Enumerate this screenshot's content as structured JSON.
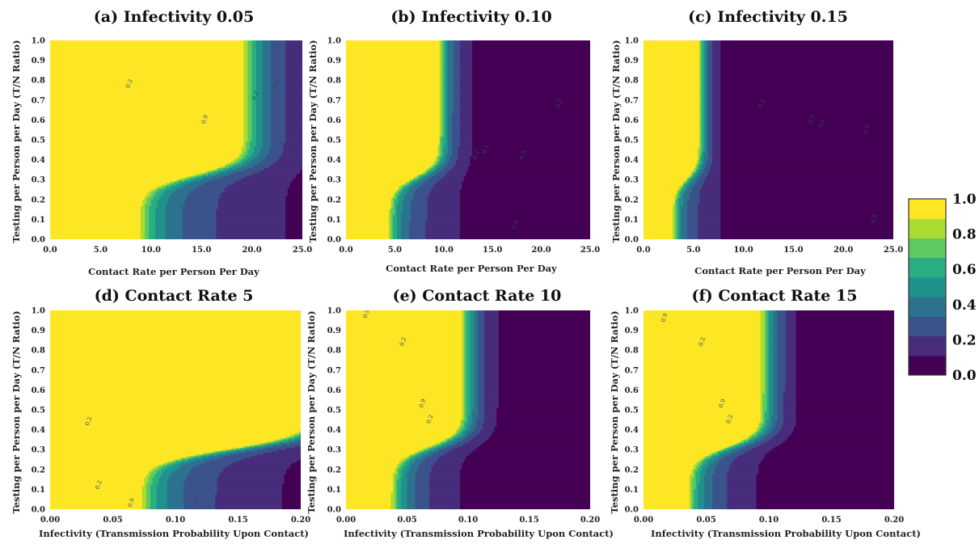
{
  "figure": {
    "colorbar": {
      "ticks": [
        "1.0",
        "0.8",
        "0.6",
        "0.4",
        "0.2",
        "0.0"
      ],
      "colors": [
        "#440154",
        "#472d7b",
        "#3b528b",
        "#2c728e",
        "#21918c",
        "#28ae80",
        "#5ec962",
        "#addc30",
        "#fde725"
      ]
    }
  },
  "chart_data": [
    {
      "type": "contour",
      "title": "(a) Infectivity 0.05",
      "xlabel": "Contact Rate per Person Per Day",
      "ylabel": "Testing per Person per Day (T/N Ratio)",
      "xlim": [
        0,
        25
      ],
      "ylim": [
        0,
        1
      ],
      "xticks": [
        "0.0",
        "5.0",
        "10.0",
        "15.0",
        "20.0",
        "25.0"
      ],
      "yticks": [
        "0.0",
        "0.1",
        "0.2",
        "0.3",
        "0.4",
        "0.5",
        "0.6",
        "0.7",
        "0.8",
        "0.9",
        "1.0"
      ],
      "contour_labels": [
        "0.9",
        "0.9",
        "0.2",
        "0.2"
      ],
      "params": {
        "threshold": 0.32,
        "xlow": 8.5,
        "xhigh": 18.8,
        "spread": 1.4,
        "decay": 9
      }
    },
    {
      "type": "contour",
      "title": "(b) Infectivity 0.10",
      "xlabel": "Contact Rate per Person Per Day",
      "ylabel": "Testing per Person per Day (T/N Ratio)",
      "xlim": [
        0,
        25
      ],
      "ylim": [
        0,
        1
      ],
      "xticks": [
        "0.0",
        "5.0",
        "10.0",
        "15.0",
        "20.0",
        "25.0"
      ],
      "yticks": [
        "0.0",
        "0.1",
        "0.2",
        "0.3",
        "0.4",
        "0.5",
        "0.6",
        "0.7",
        "0.8",
        "0.9",
        "1.0"
      ],
      "contour_labels": [
        "0.9",
        "0.9",
        "0.2",
        "0.2",
        "0.1"
      ],
      "params": {
        "threshold": 0.31,
        "xlow": 4.2,
        "xhigh": 9.3,
        "spread": 0.75,
        "decay": 4.5
      }
    },
    {
      "type": "contour",
      "title": "(c) Infectivity 0.15",
      "xlabel": "Contact Rate per Person Per Day",
      "ylabel": "Testing per Person per Day (T/N Ratio)",
      "xlim": [
        0,
        25
      ],
      "ylim": [
        0,
        1
      ],
      "xticks": [
        "0.0",
        "5.0",
        "10.0",
        "15.0",
        "20.0",
        "25.0"
      ],
      "yticks": [
        "0.0",
        "0.1",
        "0.2",
        "0.3",
        "0.4",
        "0.5",
        "0.6",
        "0.7",
        "0.8",
        "0.9",
        "1.0"
      ],
      "contour_labels": [
        "0.9",
        "0.9",
        "0.2",
        "0.2",
        "0.1"
      ],
      "params": {
        "threshold": 0.3,
        "xlow": 2.8,
        "xhigh": 5.4,
        "spread": 0.5,
        "decay": 3
      }
    },
    {
      "type": "contour",
      "title": "(d) Contact Rate 5",
      "xlabel": "Infectivity (Transmission Probability Upon Contact)",
      "ylabel": "Testing per Person per Day (T/N Ratio)",
      "xlim": [
        0,
        0.2
      ],
      "ylim": [
        0,
        1
      ],
      "xticks": [
        "0.00",
        "0.05",
        "0.10",
        "0.15",
        "0.20"
      ],
      "yticks": [
        "0.0",
        "0.1",
        "0.2",
        "0.3",
        "0.4",
        "0.5",
        "0.6",
        "0.7",
        "0.8",
        "0.9",
        "1.0"
      ],
      "contour_labels": [
        "0.9",
        "0.9",
        "0.2",
        "0.2"
      ],
      "params": {
        "threshold": 0.3,
        "xlow": 0.07,
        "xhigh": 0.205,
        "spread": 0.011,
        "decay": 0.07
      }
    },
    {
      "type": "contour",
      "title": "(e) Contact Rate 10",
      "xlabel": "Infectivity (Transmission Probability Upon Contact)",
      "ylabel": "Testing per Person per Day (T/N Ratio)",
      "xlim": [
        0,
        0.2
      ],
      "ylim": [
        0,
        1
      ],
      "xticks": [
        "0.00",
        "0.05",
        "0.10",
        "0.15",
        "0.20"
      ],
      "yticks": [
        "0.0",
        "0.1",
        "0.2",
        "0.3",
        "0.4",
        "0.5",
        "0.6",
        "0.7",
        "0.8",
        "0.9",
        "1.0"
      ],
      "contour_labels": [
        "0.9",
        "0.9",
        "0.2",
        "0.2"
      ],
      "params": {
        "threshold": 0.31,
        "xlow": 0.035,
        "xhigh": 0.093,
        "spread": 0.0085,
        "decay": 0.035
      }
    },
    {
      "type": "contour",
      "title": "(f) Contact Rate 15",
      "xlabel": "Infectivity (Transmission Probability Upon Contact)",
      "ylabel": "Testing per Person per Day (T/N Ratio)",
      "xlim": [
        0,
        0.2
      ],
      "ylim": [
        0,
        1
      ],
      "xticks": [
        "0.00",
        "0.05",
        "0.10",
        "0.15",
        "0.20"
      ],
      "yticks": [
        "0.0",
        "0.1",
        "0.2",
        "0.3",
        "0.4",
        "0.5",
        "0.6",
        "0.7",
        "0.8",
        "0.9",
        "1.0"
      ],
      "contour_labels": [
        "0.9",
        "0.9",
        "0.2",
        "0.2"
      ],
      "params": {
        "threshold": 0.31,
        "xlow": 0.034,
        "xhigh": 0.092,
        "spread": 0.0083,
        "decay": 0.034
      }
    }
  ]
}
